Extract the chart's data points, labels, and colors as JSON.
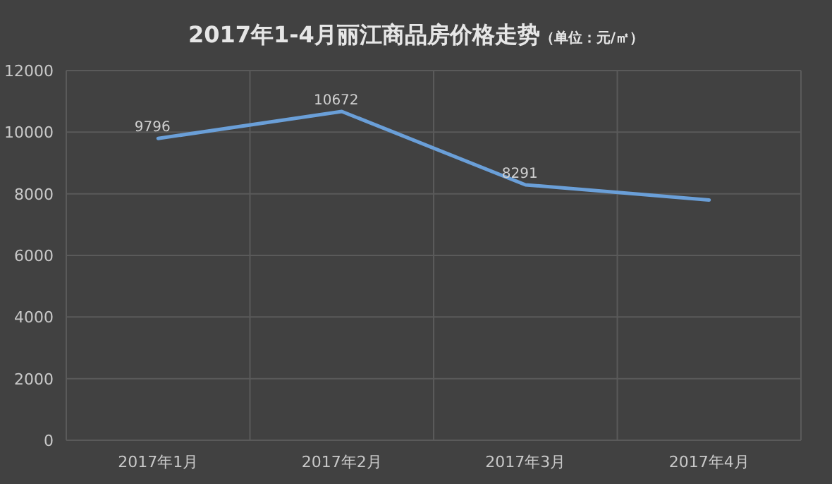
{
  "chart_data": {
    "type": "line",
    "title": "2017年1-4月丽江商品房价格走势",
    "subtitle": "（单位：元/㎡）",
    "categories": [
      "2017年1月",
      "2017年2月",
      "2017年3月",
      "2017年4月"
    ],
    "series": [
      {
        "color": "#6a9fd8",
        "values": [
          9796,
          10672,
          8291,
          7800
        ],
        "value_labels": [
          "9796",
          "10672",
          "8291",
          null
        ]
      }
    ],
    "ylim": [
      0,
      12000
    ],
    "yticks": [
      0,
      2000,
      4000,
      6000,
      8000,
      10000,
      12000
    ],
    "grid": true,
    "marker": "none",
    "line_style": "solid"
  }
}
